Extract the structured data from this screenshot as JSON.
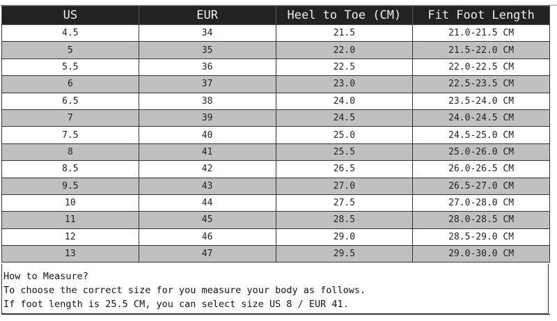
{
  "table": {
    "headers": [
      "US",
      "EUR",
      "Heel to Toe (CM)",
      "Fit Foot Length"
    ],
    "rows": [
      [
        "4.5",
        "34",
        "21.5",
        "21.0-21.5 CM"
      ],
      [
        "5",
        "35",
        "22.0",
        "21.5-22.0 CM"
      ],
      [
        "5.5",
        "36",
        "22.5",
        "22.0-22.5 CM"
      ],
      [
        "6",
        "37",
        "23.0",
        "22.5-23.5 CM"
      ],
      [
        "6.5",
        "38",
        "24.0",
        "23.5-24.0 CM"
      ],
      [
        "7",
        "39",
        "24.5",
        "24.0-24.5 CM"
      ],
      [
        "7.5",
        "40",
        "25.0",
        "24.5-25.0 CM"
      ],
      [
        "8",
        "41",
        "25.5",
        "25.0-26.0 CM"
      ],
      [
        "8.5",
        "42",
        "26.5",
        "26.0-26.5 CM"
      ],
      [
        "9.5",
        "43",
        "27.0",
        "26.5-27.0 CM"
      ],
      [
        "10",
        "44",
        "27.5",
        "27.0-28.0 CM"
      ],
      [
        "11",
        "45",
        "28.5",
        "28.0-28.5 CM"
      ],
      [
        "12",
        "46",
        "29.0",
        "28.5-29.0 CM"
      ],
      [
        "13",
        "47",
        "29.5",
        "29.0-30.0 CM"
      ]
    ]
  },
  "note": {
    "title": "How to Measure?",
    "line1": "To choose the correct size for you measure your body as follows.",
    "line2": "If foot length is 25.5 CM, you can select size US 8 / EUR 41."
  }
}
